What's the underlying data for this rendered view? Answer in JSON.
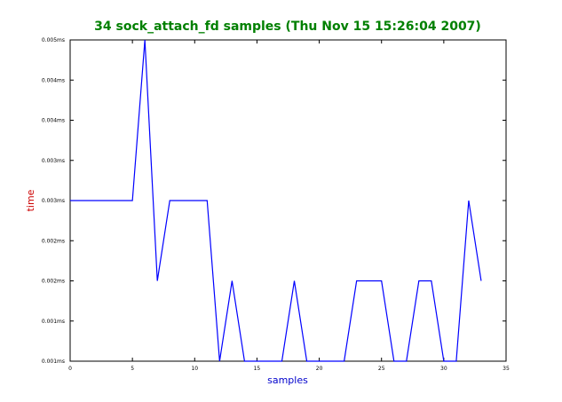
{
  "chart_data": {
    "type": "line",
    "title": "34 sock_attach_fd samples (Thu Nov 15 15:26:04 2007)",
    "xlabel": "samples",
    "ylabel": "time",
    "xlim": [
      0,
      35
    ],
    "ylim": [
      0.0,
      8.0
    ],
    "x_ticks": [
      0,
      5,
      10,
      15,
      20,
      25,
      30,
      35
    ],
    "y_ticks": [
      {
        "value": 0,
        "label": "0.001ms"
      },
      {
        "value": 1,
        "label": "0.001ms"
      },
      {
        "value": 2,
        "label": "0.002ms"
      },
      {
        "value": 3,
        "label": "0.002ms"
      },
      {
        "value": 4,
        "label": "0.003ms"
      },
      {
        "value": 5,
        "label": "0.003ms"
      },
      {
        "value": 6,
        "label": "0.004ms"
      },
      {
        "value": 7,
        "label": "0.004ms"
      },
      {
        "value": 8,
        "label": "0.005ms"
      }
    ],
    "grid": false,
    "series": [
      {
        "x": [
          0,
          1,
          2,
          3,
          4,
          5,
          6,
          7,
          8,
          9,
          10,
          11,
          12,
          13,
          14,
          15,
          16,
          17,
          18,
          19,
          20,
          21,
          22,
          23,
          24,
          25,
          26,
          27,
          28,
          29,
          30,
          31,
          32,
          33
        ],
        "values": [
          4,
          4,
          4,
          4,
          4,
          4,
          8,
          2,
          4,
          4,
          4,
          4,
          0,
          2,
          0,
          0,
          0,
          0,
          2,
          0,
          0,
          0,
          0,
          2,
          2,
          2,
          0,
          0,
          2,
          2,
          0,
          0,
          4,
          2
        ]
      }
    ],
    "colors": {
      "line": "#0000ff",
      "title": "#008000",
      "xlabel": "#0000cc",
      "ylabel": "#cc0000"
    }
  }
}
